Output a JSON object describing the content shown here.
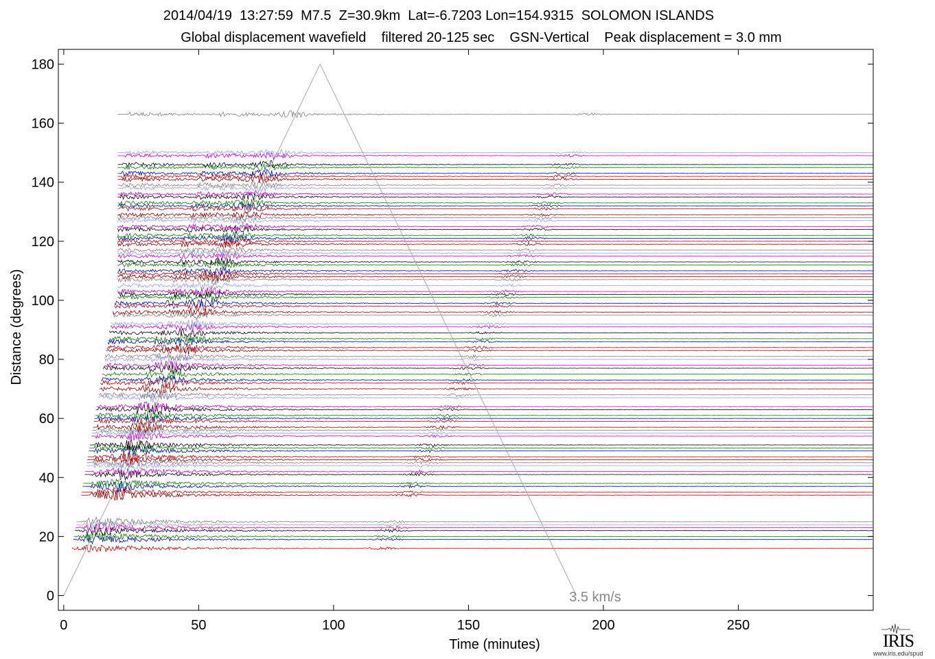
{
  "header": {
    "line1": "2014/04/19  13:27:59  M7.5  Z=30.9km  Lat=-6.7203 Lon=154.9315  SOLOMON ISLANDS",
    "line2": "Global displacement wavefield    filtered 20-125 sec    GSN-Vertical    Peak displacement = 3.0 mm"
  },
  "logo": {
    "text": "IRIS",
    "url": "www.iris.edu/spud"
  },
  "chart_data": {
    "type": "line",
    "title": "2014/04/19  13:27:59  M7.5  Z=30.9km  Lat=-6.7203 Lon=154.9315  SOLOMON ISLANDS",
    "subtitle": "Global displacement wavefield    filtered 20-125 sec    GSN-Vertical    Peak displacement = 3.0 mm",
    "xlabel": "Time (minutes)",
    "ylabel": "Distance (degrees)",
    "xlim": [
      -2,
      300
    ],
    "ylim": [
      -5,
      185
    ],
    "xticks": [
      0,
      50,
      100,
      150,
      200,
      250
    ],
    "yticks": [
      0,
      20,
      40,
      60,
      80,
      100,
      120,
      140,
      160,
      180
    ],
    "grid": false,
    "colors": [
      "#cc0000",
      "#0000cc",
      "#008000",
      "#000000",
      "#cc00cc",
      "#9999ff",
      "#808080",
      "#8b0000"
    ],
    "reference_line": {
      "label": "3.5 km/s",
      "color": "#aaaaaa",
      "x": [
        0,
        95,
        190
      ],
      "y": [
        0,
        180,
        0
      ]
    },
    "trace_distances": [
      16,
      19,
      20,
      22,
      23,
      24,
      25,
      34,
      35,
      37,
      38,
      41,
      42,
      44,
      45,
      46,
      47,
      49,
      50,
      51,
      54,
      55,
      56,
      57,
      59,
      60,
      61,
      63,
      64,
      67,
      68,
      70,
      72,
      73,
      75,
      77,
      78,
      80,
      81,
      83,
      84,
      86,
      87,
      89,
      91,
      92,
      95,
      96,
      98,
      99,
      101,
      102,
      103,
      105,
      107,
      108,
      109,
      110,
      112,
      113,
      115,
      116,
      117,
      119,
      120,
      121,
      122,
      124,
      125,
      127,
      128,
      129,
      131,
      132,
      133,
      135,
      136,
      138,
      139,
      141,
      142,
      143,
      145,
      146,
      149,
      150,
      163
    ]
  }
}
